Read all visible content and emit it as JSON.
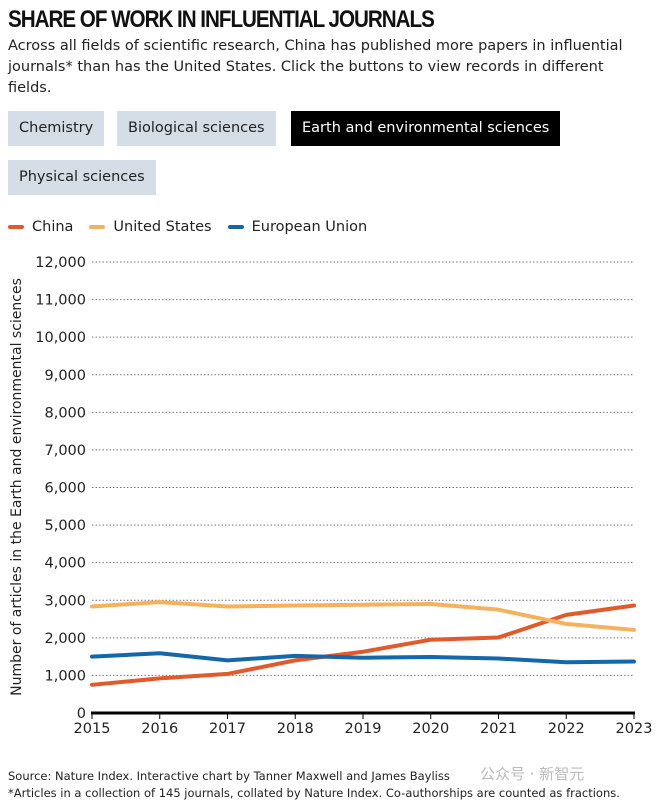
{
  "header": {
    "title": "SHARE OF WORK IN INFLUENTIAL JOURNALS",
    "description": "Across all fields of scientific research, China has published more papers in influential journals* than has the United States. Click the buttons to view records in different fields."
  },
  "buttons": [
    {
      "label": "Chemistry",
      "active": false
    },
    {
      "label": "Biological sciences",
      "active": false
    },
    {
      "label": "Earth and environmental sciences",
      "active": true
    },
    {
      "label": "Physical sciences",
      "active": false
    }
  ],
  "footer": {
    "source": "Source: Nature Index. Interactive chart by Tanner Maxwell and James Bayliss",
    "note": "*Articles in a collection of 145 journals, collated by Nature Index. Co-authorships are counted as fractions.",
    "watermark": "公众号 · 新智元"
  },
  "chart_data": {
    "type": "line",
    "title": "",
    "ylabel": "Number of articles in the Earth and environmental sciences",
    "xlabel": "",
    "x": [
      2015,
      2016,
      2017,
      2018,
      2019,
      2020,
      2021,
      2022,
      2023
    ],
    "ylim": [
      0,
      12000
    ],
    "yticks": [
      0,
      1000,
      2000,
      3000,
      4000,
      5000,
      6000,
      7000,
      8000,
      9000,
      10000,
      11000,
      12000
    ],
    "ytick_labels": [
      "0",
      "1,000",
      "2,000",
      "3,000",
      "4,000",
      "5,000",
      "6,000",
      "7,000",
      "8,000",
      "9,000",
      "10,000",
      "11,000",
      "12,000"
    ],
    "grid": "horizontal dotted",
    "legend": "top-left",
    "series": [
      {
        "name": "China",
        "color": "#e2592b",
        "values": [
          750,
          920,
          1040,
          1400,
          1630,
          1950,
          2010,
          2610,
          2860
        ]
      },
      {
        "name": "United States",
        "color": "#f4b25f",
        "values": [
          2835,
          2950,
          2835,
          2860,
          2880,
          2900,
          2750,
          2370,
          2210
        ]
      },
      {
        "name": "European Union",
        "color": "#1467a8",
        "values": [
          1500,
          1590,
          1400,
          1520,
          1470,
          1490,
          1450,
          1350,
          1370
        ]
      }
    ]
  }
}
